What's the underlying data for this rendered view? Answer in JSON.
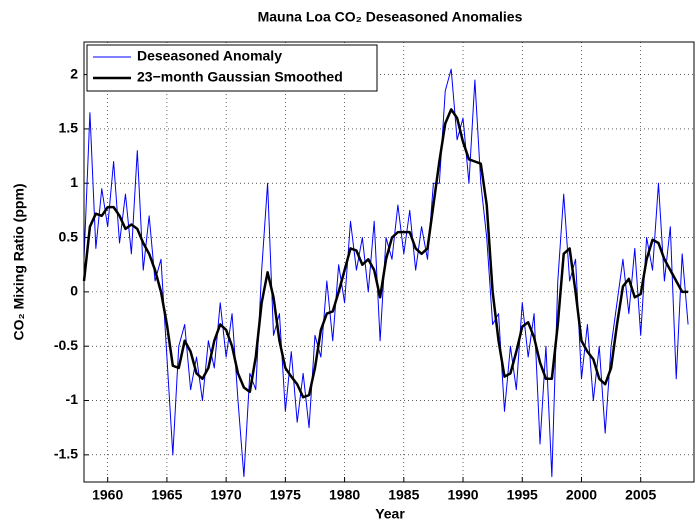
{
  "chart_data": {
    "type": "line",
    "title": "Mauna Loa CO₂ Deseasoned Anomalies",
    "xlabel": "Year",
    "ylabel": "CO₂ Mixing Ratio (ppm)",
    "x": [
      1958,
      1958.5,
      1959,
      1959.5,
      1960,
      1960.5,
      1961,
      1961.5,
      1962,
      1962.5,
      1963,
      1963.5,
      1964,
      1964.5,
      1965,
      1965.5,
      1966,
      1966.5,
      1967,
      1967.5,
      1968,
      1968.5,
      1969,
      1969.5,
      1970,
      1970.5,
      1971,
      1971.5,
      1972,
      1972.5,
      1973,
      1973.5,
      1974,
      1974.5,
      1975,
      1975.5,
      1976,
      1976.5,
      1977,
      1977.5,
      1978,
      1978.5,
      1979,
      1979.5,
      1980,
      1980.5,
      1981,
      1981.5,
      1982,
      1982.5,
      1983,
      1983.5,
      1984,
      1984.5,
      1985,
      1985.5,
      1986,
      1986.5,
      1987,
      1987.5,
      1988,
      1988.5,
      1989,
      1989.5,
      1990,
      1990.5,
      1991,
      1991.5,
      1992,
      1992.5,
      1993,
      1993.5,
      1994,
      1994.5,
      1995,
      1995.5,
      1996,
      1996.5,
      1997,
      1997.5,
      1998,
      1998.5,
      1999,
      1999.5,
      2000,
      2000.5,
      2001,
      2001.5,
      2002,
      2002.5,
      2003,
      2003.5,
      2004,
      2004.5,
      2005,
      2005.5,
      2006,
      2006.5,
      2007,
      2007.5,
      2008,
      2008.5,
      2009
    ],
    "series": [
      {
        "name": "Deseasoned Anomaly",
        "color": "#0000ff",
        "width": 1,
        "values": [
          0.3,
          1.65,
          0.4,
          0.95,
          0.6,
          1.2,
          0.45,
          0.9,
          0.35,
          1.3,
          0.2,
          0.7,
          0.1,
          0.3,
          -0.6,
          -1.5,
          -0.5,
          -0.3,
          -0.9,
          -0.6,
          -1.0,
          -0.45,
          -0.7,
          -0.1,
          -0.6,
          -0.2,
          -1.0,
          -1.7,
          -0.75,
          -0.9,
          0.2,
          1.0,
          -0.4,
          -0.2,
          -1.1,
          -0.55,
          -1.2,
          -0.75,
          -1.25,
          -0.4,
          -0.6,
          0.1,
          -0.45,
          0.25,
          -0.1,
          0.65,
          0.2,
          0.5,
          0.0,
          0.65,
          -0.45,
          0.5,
          0.3,
          0.8,
          0.35,
          0.75,
          0.2,
          0.6,
          0.3,
          1.0,
          1.0,
          1.85,
          2.05,
          1.4,
          1.6,
          1.0,
          1.95,
          1.0,
          0.5,
          -0.3,
          -0.2,
          -1.1,
          -0.5,
          -0.9,
          -0.1,
          -0.6,
          -0.2,
          -1.4,
          -0.5,
          -1.7,
          0.1,
          0.9,
          0.1,
          0.3,
          -0.8,
          -0.3,
          -1.0,
          -0.5,
          -1.3,
          -0.5,
          -0.1,
          0.3,
          -0.2,
          0.4,
          -0.4,
          0.5,
          0.2,
          1.0,
          0.1,
          0.6,
          -0.8,
          0.35,
          -0.3
        ]
      },
      {
        "name": "23−month Gaussian Smoothed",
        "color": "#000000",
        "width": 2.5,
        "values": [
          0.1,
          0.6,
          0.72,
          0.7,
          0.78,
          0.78,
          0.7,
          0.58,
          0.62,
          0.58,
          0.45,
          0.35,
          0.2,
          0.0,
          -0.3,
          -0.68,
          -0.7,
          -0.45,
          -0.55,
          -0.75,
          -0.8,
          -0.7,
          -0.45,
          -0.3,
          -0.35,
          -0.5,
          -0.75,
          -0.88,
          -0.92,
          -0.6,
          -0.1,
          0.18,
          -0.05,
          -0.45,
          -0.7,
          -0.78,
          -0.85,
          -0.97,
          -0.95,
          -0.7,
          -0.35,
          -0.2,
          -0.18,
          0.0,
          0.2,
          0.4,
          0.38,
          0.25,
          0.3,
          0.2,
          -0.05,
          0.3,
          0.5,
          0.55,
          0.55,
          0.55,
          0.4,
          0.35,
          0.4,
          0.8,
          1.2,
          1.55,
          1.68,
          1.6,
          1.38,
          1.22,
          1.2,
          1.18,
          0.8,
          0.0,
          -0.45,
          -0.78,
          -0.75,
          -0.55,
          -0.32,
          -0.28,
          -0.42,
          -0.65,
          -0.8,
          -0.8,
          -0.3,
          0.35,
          0.4,
          0.0,
          -0.45,
          -0.55,
          -0.62,
          -0.8,
          -0.85,
          -0.7,
          -0.3,
          0.05,
          0.12,
          -0.05,
          -0.02,
          0.3,
          0.48,
          0.45,
          0.3,
          0.2,
          0.1,
          0.0,
          0.0
        ]
      }
    ],
    "xlim": [
      1958,
      2009.5
    ],
    "xticks": [
      1960,
      1965,
      1970,
      1975,
      1980,
      1985,
      1990,
      1995,
      2000,
      2005
    ],
    "ylim": [
      -1.75,
      2.3
    ],
    "yticks": [
      -1.5,
      -1,
      -0.5,
      0,
      0.5,
      1,
      1.5,
      2
    ],
    "grid": true,
    "legend": "upper left"
  }
}
